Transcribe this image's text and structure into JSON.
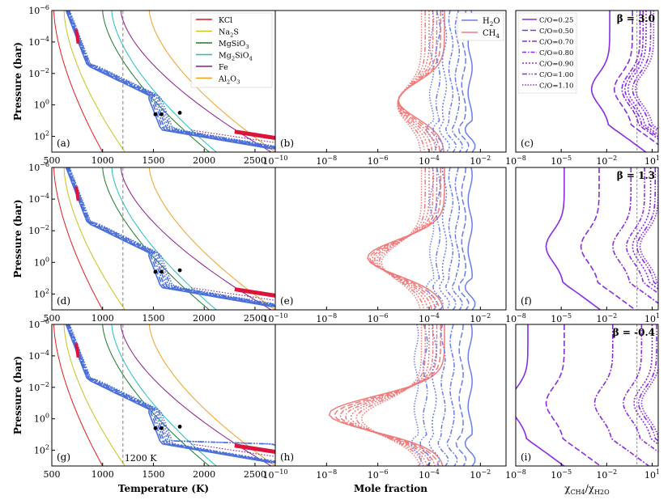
{
  "figure": {
    "ylabel_pressure": "Pressure (bar)",
    "xlabel_temperature": "Temperature (K)",
    "xlabel_mole": "Mole fraction",
    "xlabel_ratio_main": "χ",
    "xlabel_ratio_sub_num": "CH4",
    "xlabel_ratio_slash": "/χ",
    "xlabel_ratio_sub_den": "H2O",
    "isotherm_label": "1200 K",
    "colors": {
      "tp_profile": "#4a6fd8",
      "tp_convective": "#dc143c",
      "h2o": "#6a7ee6",
      "ch4": "#f07b7b",
      "ratio": "#8a2be2",
      "isotherm": "#7f7f7f"
    }
  },
  "chart_data": [
    {
      "type": "line",
      "panel": "a",
      "row": 1,
      "xlim": [
        500,
        2700
      ],
      "ylim_log10_pressure_bar": [
        -6,
        3
      ],
      "y_ticks": [
        "10^-6",
        "10^-4",
        "10^-2",
        "10^0",
        "10^2"
      ],
      "x_ticks": [
        "500",
        "1000",
        "1500",
        "2000",
        "2500"
      ],
      "isotherm_K": 1200,
      "condensation_curves": [
        {
          "name": "KCl",
          "label_main": "KCl",
          "label_sub": "",
          "color": "#e41a1c",
          "T_at_top": 520,
          "T_at_bottom": 1000
        },
        {
          "name": "Na2S",
          "label_main": "Na",
          "label_sub": "2",
          "label_tail": "S",
          "color": "#c8c219",
          "T_at_top": 620,
          "T_at_bottom": 1220
        },
        {
          "name": "MgSiO3",
          "label_main": "MgSiO",
          "label_sub": "3",
          "label_tail": "",
          "color": "#1b7a2a",
          "T_at_top": 1000,
          "T_at_bottom": 2050
        },
        {
          "name": "Mg2SiO4",
          "label_main": "Mg",
          "label_sub": "2",
          "label_tail": "SiO",
          "label_sub2": "4",
          "color": "#20c0c0",
          "T_at_top": 1090,
          "T_at_bottom": 2120
        },
        {
          "name": "Fe",
          "label_main": "Fe",
          "label_sub": "",
          "color": "#8b1a8b",
          "T_at_top": 1180,
          "T_at_bottom": 2660
        },
        {
          "name": "Al2O3",
          "label_main": "Al",
          "label_sub": "2",
          "label_tail": "O",
          "label_sub2": "3",
          "color": "#f0a020",
          "T_at_top": 1460,
          "T_at_bottom": 2700
        }
      ]
    },
    {
      "type": "line",
      "panel": "b",
      "row": 1,
      "xlim_log10": [
        -10,
        -1
      ],
      "x_ticks": [
        "10^-10",
        "10^-8",
        "10^-6",
        "10^-4",
        "10^-2"
      ],
      "legend": [
        {
          "name": "H2O",
          "label_main": "H",
          "label_sub": "2",
          "label_tail": "O"
        },
        {
          "name": "CH4",
          "label_main": "CH",
          "label_sub": "4",
          "label_tail": ""
        }
      ]
    },
    {
      "type": "line",
      "panel": "c",
      "row": 1,
      "beta_label": "β = 3.0",
      "xlim_log10": [
        -8,
        1.4
      ],
      "x_ticks": [
        "10^-8",
        "10^-5",
        "10^-2",
        "10^1"
      ],
      "reference_line_log10": 0,
      "legend": [
        {
          "co": "C/O=0.25"
        },
        {
          "co": "C/O=0.50"
        },
        {
          "co": "C/O=0.70"
        },
        {
          "co": "C/O=0.80"
        },
        {
          "co": "C/O=0.90"
        },
        {
          "co": "C/O=1.00"
        },
        {
          "co": "C/O=1.10"
        }
      ]
    },
    {
      "type": "line",
      "panel": "d",
      "row": 2,
      "xlim": [
        500,
        2700
      ],
      "ylim_log10_pressure_bar": [
        -6,
        3
      ],
      "x_ticks": [
        "500",
        "1000",
        "1500",
        "2000",
        "2500"
      ]
    },
    {
      "type": "line",
      "panel": "e",
      "row": 2,
      "xlim_log10": [
        -10,
        -1
      ],
      "x_ticks": [
        "10^-10",
        "10^-8",
        "10^-6",
        "10^-4",
        "10^-2"
      ]
    },
    {
      "type": "line",
      "panel": "f",
      "row": 2,
      "beta_label": "β = 1.3",
      "xlim_log10": [
        -8,
        1.4
      ],
      "x_ticks": [
        "10^-8",
        "10^-5",
        "10^-2",
        "10^1"
      ]
    },
    {
      "type": "line",
      "panel": "g",
      "row": 3,
      "xlim": [
        500,
        2700
      ],
      "ylim_log10_pressure_bar": [
        -6,
        3
      ],
      "x_ticks": [
        "500",
        "1000",
        "1500",
        "2000",
        "2500"
      ]
    },
    {
      "type": "line",
      "panel": "h",
      "row": 3,
      "xlim_log10": [
        -10,
        -1
      ],
      "x_ticks": [
        "10^-10",
        "10^-8",
        "10^-6",
        "10^-4",
        "10^-2"
      ]
    },
    {
      "type": "line",
      "panel": "i",
      "row": 3,
      "beta_label": "β = -0.4",
      "xlim_log10": [
        -8,
        1.4
      ],
      "x_ticks": [
        "10^-8",
        "10^-5",
        "10^-2",
        "10^1"
      ]
    }
  ]
}
